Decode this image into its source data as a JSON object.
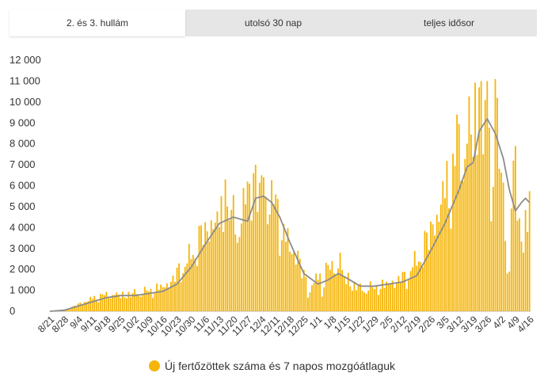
{
  "tabs": [
    {
      "label": "2. és 3. hullám",
      "active": true
    },
    {
      "label": "utolsó 30 nap",
      "active": false
    },
    {
      "label": "teljes idősor",
      "active": false
    }
  ],
  "legend": {
    "label": "Új fertőzöttek száma és 7 napos mozgóátlaguk"
  },
  "colors": {
    "bar": "#f5b50a",
    "line": "#8c8c8c",
    "tab_bg": "#e6e6e6"
  },
  "chart_data": {
    "type": "bar",
    "start_date": "2020-08-21",
    "end_date": "2021-04-16",
    "x_tick_labels": [
      "8/21",
      "8/28",
      "9/4",
      "9/11",
      "9/18",
      "9/25",
      "10/2",
      "10/9",
      "10/16",
      "10/23",
      "10/30",
      "11/6",
      "11/13",
      "11/20",
      "11/27",
      "12/4",
      "12/11",
      "12/18",
      "12/25",
      "1/1",
      "1/8",
      "1/15",
      "1/22",
      "1/29",
      "2/5",
      "2/12",
      "2/19",
      "2/26",
      "3/5",
      "3/12",
      "3/19",
      "3/26",
      "4/2",
      "4/9",
      "4/16"
    ],
    "ylim": [
      0,
      12000
    ],
    "y_ticks": [
      0,
      1000,
      2000,
      3000,
      4000,
      5000,
      6000,
      7000,
      8000,
      9000,
      10000,
      11000,
      12000
    ],
    "y_tick_labels": [
      "0",
      "1 000",
      "2 000",
      "3 000",
      "4 000",
      "5 000",
      "6 000",
      "7 000",
      "8 000",
      "9 000",
      "10 000",
      "11 000",
      "12 000"
    ],
    "grid": false,
    "legend_position": "bottom",
    "series": [
      {
        "name": "Új fertőzöttek száma",
        "kind": "bar",
        "anchors": [
          [
            "2020-08-21",
            20
          ],
          [
            "2020-08-27",
            60
          ],
          [
            "2020-09-01",
            200
          ],
          [
            "2020-09-05",
            400
          ],
          [
            "2020-09-10",
            600
          ],
          [
            "2020-09-15",
            750
          ],
          [
            "2020-09-20",
            850
          ],
          [
            "2020-09-25",
            800
          ],
          [
            "2020-09-30",
            850
          ],
          [
            "2020-10-05",
            950
          ],
          [
            "2020-10-10",
            1000
          ],
          [
            "2020-10-15",
            1200
          ],
          [
            "2020-10-20",
            1500
          ],
          [
            "2020-10-25",
            2100
          ],
          [
            "2020-10-30",
            2700
          ],
          [
            "2020-11-04",
            3700
          ],
          [
            "2020-11-09",
            4500
          ],
          [
            "2020-11-14",
            4600
          ],
          [
            "2020-11-19",
            4700
          ],
          [
            "2020-11-23",
            4300
          ],
          [
            "2020-11-28",
            5800
          ],
          [
            "2020-12-03",
            6200
          ],
          [
            "2020-12-07",
            5800
          ],
          [
            "2020-12-11",
            5200
          ],
          [
            "2020-12-16",
            3500
          ],
          [
            "2020-12-21",
            3000
          ],
          [
            "2020-12-26",
            1500
          ],
          [
            "2020-12-31",
            1500
          ],
          [
            "2021-01-05",
            2000
          ],
          [
            "2021-01-10",
            2300
          ],
          [
            "2021-01-15",
            1600
          ],
          [
            "2021-01-22",
            1100
          ],
          [
            "2021-01-31",
            1200
          ],
          [
            "2021-02-07",
            1500
          ],
          [
            "2021-02-14",
            1700
          ],
          [
            "2021-02-21",
            2800
          ],
          [
            "2021-02-26",
            4000
          ],
          [
            "2021-03-03",
            5500
          ],
          [
            "2021-03-08",
            6500
          ],
          [
            "2021-03-13",
            8000
          ],
          [
            "2021-03-18",
            9000
          ],
          [
            "2021-03-22",
            10000
          ],
          [
            "2021-03-26",
            9800
          ],
          [
            "2021-03-30",
            8200
          ],
          [
            "2021-04-03",
            5800
          ],
          [
            "2021-04-08",
            5200
          ],
          [
            "2021-04-12",
            4500
          ],
          [
            "2021-04-16",
            5000
          ]
        ],
        "spikes": [
          [
            "2020-11-16",
            6300
          ],
          [
            "2020-11-27",
            6200
          ],
          [
            "2020-11-28",
            6100
          ],
          [
            "2020-11-30",
            6600
          ],
          [
            "2020-12-04",
            6500
          ],
          [
            "2020-12-05",
            6400
          ],
          [
            "2021-01-12",
            2800
          ],
          [
            "2021-03-11",
            9400
          ],
          [
            "2021-03-22",
            10700
          ],
          [
            "2021-03-23",
            11000
          ],
          [
            "2021-03-30",
            11100
          ],
          [
            "2021-03-31",
            10200
          ],
          [
            "2021-04-08",
            7200
          ],
          [
            "2021-04-09",
            7900
          ]
        ],
        "lows": [
          [
            "2020-12-27",
            650
          ],
          [
            "2020-12-28",
            900
          ],
          [
            "2021-01-03",
            700
          ],
          [
            "2021-03-28",
            4300
          ],
          [
            "2021-04-05",
            1800
          ],
          [
            "2021-04-06",
            1900
          ],
          [
            "2021-04-13",
            2800
          ]
        ]
      },
      {
        "name": "7 napos mozgóátlag",
        "kind": "line",
        "points": [
          [
            "2020-08-21",
            0
          ],
          [
            "2020-08-28",
            50
          ],
          [
            "2020-09-04",
            250
          ],
          [
            "2020-09-11",
            450
          ],
          [
            "2020-09-18",
            650
          ],
          [
            "2020-09-25",
            750
          ],
          [
            "2020-10-02",
            750
          ],
          [
            "2020-10-09",
            850
          ],
          [
            "2020-10-16",
            950
          ],
          [
            "2020-10-23",
            1300
          ],
          [
            "2020-10-30",
            2100
          ],
          [
            "2020-11-06",
            3200
          ],
          [
            "2020-11-13",
            4200
          ],
          [
            "2020-11-20",
            4500
          ],
          [
            "2020-11-27",
            4300
          ],
          [
            "2020-12-01",
            5400
          ],
          [
            "2020-12-05",
            5500
          ],
          [
            "2020-12-09",
            5200
          ],
          [
            "2020-12-13",
            4500
          ],
          [
            "2020-12-18",
            3300
          ],
          [
            "2020-12-25",
            1800
          ],
          [
            "2021-01-01",
            1300
          ],
          [
            "2021-01-06",
            1500
          ],
          [
            "2021-01-11",
            1800
          ],
          [
            "2021-01-15",
            1600
          ],
          [
            "2021-01-22",
            1200
          ],
          [
            "2021-01-29",
            1200
          ],
          [
            "2021-02-05",
            1300
          ],
          [
            "2021-02-12",
            1400
          ],
          [
            "2021-02-19",
            1700
          ],
          [
            "2021-02-26",
            2900
          ],
          [
            "2021-03-05",
            4200
          ],
          [
            "2021-03-12",
            5800
          ],
          [
            "2021-03-16",
            6900
          ],
          [
            "2021-03-19",
            7100
          ],
          [
            "2021-03-22",
            8600
          ],
          [
            "2021-03-26",
            9200
          ],
          [
            "2021-03-30",
            8500
          ],
          [
            "2021-04-03",
            7300
          ],
          [
            "2021-04-06",
            5800
          ],
          [
            "2021-04-09",
            4800
          ],
          [
            "2021-04-12",
            5200
          ],
          [
            "2021-04-14",
            5400
          ],
          [
            "2021-04-16",
            5200
          ]
        ]
      }
    ]
  }
}
